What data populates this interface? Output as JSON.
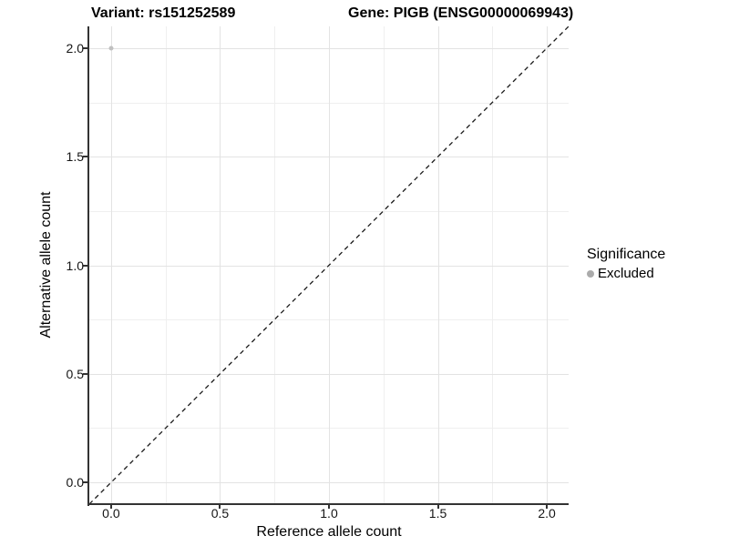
{
  "header": {
    "variant_title": "Variant: rs151252589",
    "gene_title": "Gene: PIGB (ENSG00000069943)"
  },
  "chart_data": {
    "type": "scatter",
    "title": "Variant: rs151252589 / Gene: PIGB (ENSG00000069943)",
    "xlabel": "Reference allele count",
    "ylabel": "Alternative allele count",
    "xlim": [
      -0.1,
      2.1
    ],
    "ylim": [
      -0.1,
      2.1
    ],
    "xticks": [
      0,
      0.5,
      1,
      1.5,
      2
    ],
    "xtick_labels": [
      "0.0",
      "0.5",
      "1.0",
      "1.5",
      "2.0"
    ],
    "yticks": [
      0,
      0.5,
      1,
      1.5,
      2
    ],
    "ytick_labels": [
      "0.0",
      "0.5",
      "1.0",
      "1.5",
      "2.0"
    ],
    "xminor": [
      0.25,
      0.75,
      1.25,
      1.75
    ],
    "yminor": [
      0.25,
      0.75,
      1.25,
      1.75
    ],
    "grid": true,
    "series": [
      {
        "name": "Excluded",
        "marker": "circle",
        "color": "#c0c0c0",
        "points": [
          [
            0.0,
            2.0
          ]
        ]
      }
    ],
    "reference_line": {
      "style": "dashed",
      "color": "#1a1a1a",
      "from": [
        -0.1,
        -0.1
      ],
      "to": [
        2.1,
        2.1
      ]
    },
    "legend": {
      "title": "Significance",
      "position": "right",
      "items": [
        {
          "label": "Excluded",
          "color": "#ababab",
          "marker": "circle"
        }
      ]
    }
  },
  "colors": {
    "background": "#ffffff",
    "grid_major": "#e3e3e3",
    "grid_minor": "#efefef",
    "axis": "#333333",
    "tick_text": "#151515",
    "title_text": "#000000"
  }
}
